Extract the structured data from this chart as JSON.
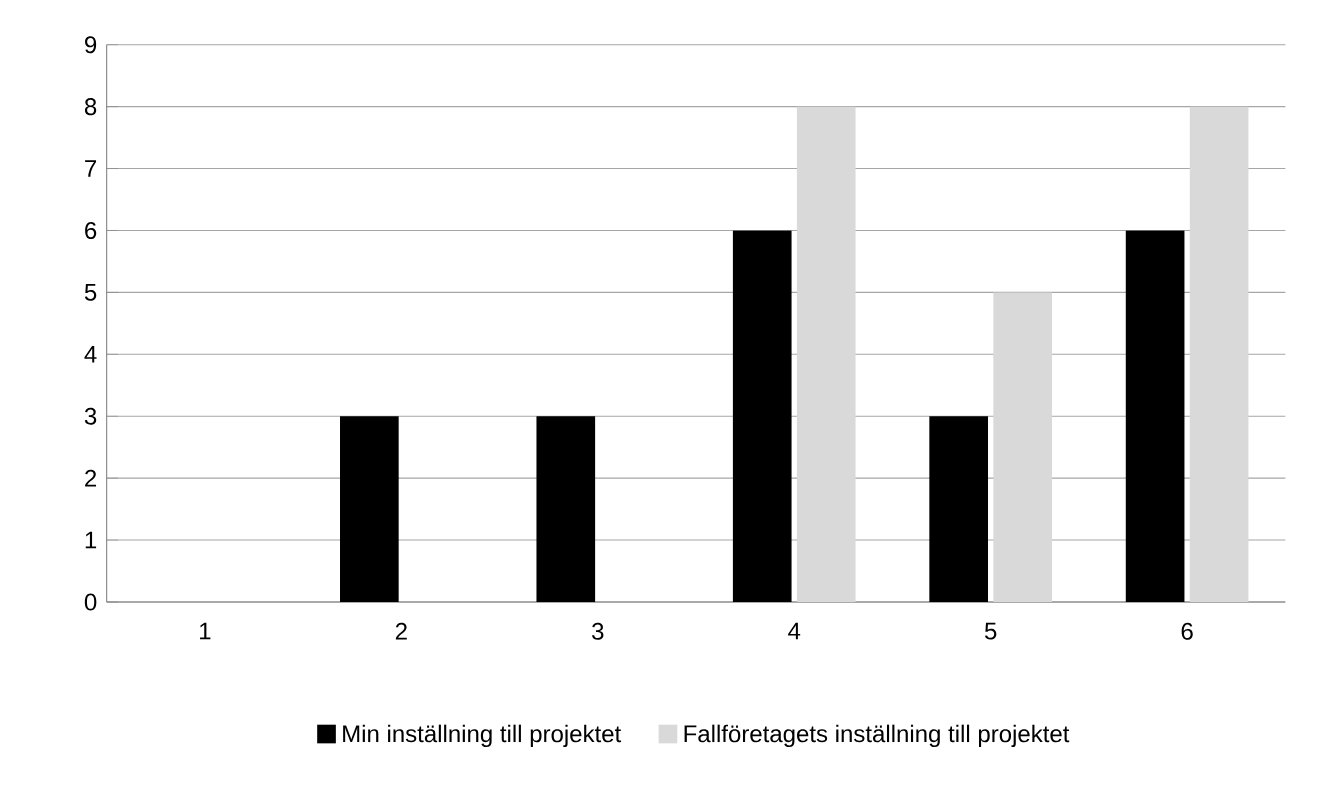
{
  "chart_data": {
    "type": "bar",
    "categories": [
      "1",
      "2",
      "3",
      "4",
      "5",
      "6"
    ],
    "series": [
      {
        "name": "Min inställning till projektet",
        "color": "#000000",
        "values": [
          0,
          3,
          3,
          6,
          3,
          6
        ]
      },
      {
        "name": "Fallföretagets inställning till projektet",
        "color": "#d9d9d9",
        "values": [
          0,
          0,
          0,
          8,
          5,
          8
        ]
      }
    ],
    "ylim": [
      0,
      9
    ],
    "yticks": [
      0,
      1,
      2,
      3,
      4,
      5,
      6,
      7,
      8,
      9
    ],
    "grid": "y",
    "legend": "bottom"
  }
}
